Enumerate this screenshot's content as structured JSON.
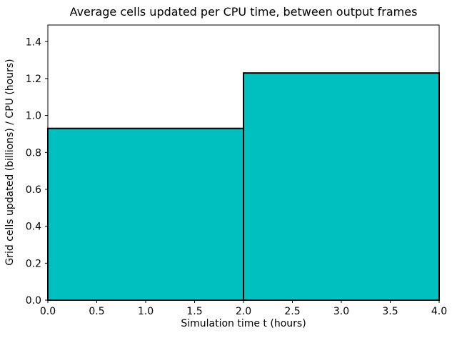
{
  "chart_data": {
    "type": "bar",
    "title": "Average cells updated per CPU time, between output frames",
    "xlabel": "Simulation time t (hours)",
    "ylabel": "Grid cells updated (billions) / CPU (hours)",
    "bin_edges": [
      0,
      2,
      4
    ],
    "values": [
      0.93,
      1.23
    ],
    "xlim": [
      0,
      4
    ],
    "ylim": [
      0,
      1.49
    ],
    "xticks": [
      0,
      0.5,
      1.0,
      1.5,
      2.0,
      2.5,
      3.0,
      3.5,
      4.0
    ],
    "xtick_labels": [
      "0.0",
      "0.5",
      "1.0",
      "1.5",
      "2.0",
      "2.5",
      "3.0",
      "3.5",
      "4.0"
    ],
    "yticks": [
      0,
      0.2,
      0.4,
      0.6,
      0.8,
      1.0,
      1.2,
      1.4
    ],
    "ytick_labels": [
      "0.0",
      "0.2",
      "0.4",
      "0.6",
      "0.8",
      "1.0",
      "1.2",
      "1.4"
    ],
    "grid": false,
    "legend": false,
    "bar_color": "#00bfbf",
    "bar_edge_color": "#000000",
    "bar_edge_width": 2,
    "spine_color": "#000000",
    "background": "#ffffff"
  }
}
